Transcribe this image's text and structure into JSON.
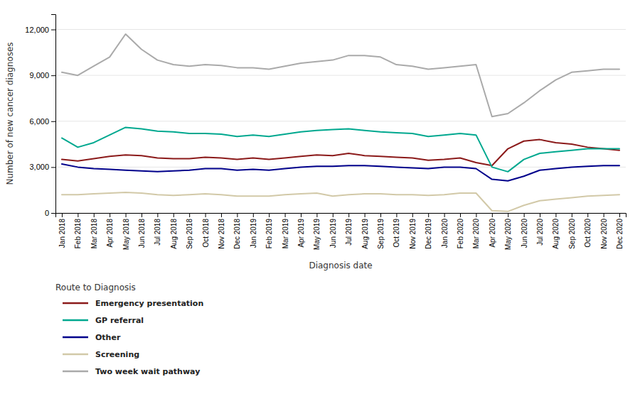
{
  "chart_data": {
    "type": "line",
    "xlabel": "Diagnosis date",
    "ylabel": "Number of new cancer diagnoses",
    "legend_title": "Route to Diagnosis",
    "categories": [
      "Jan 2018",
      "Feb 2018",
      "Mar 2018",
      "Apr 2018",
      "May 2018",
      "Jun 2018",
      "Jul 2018",
      "Aug 2018",
      "Sep 2018",
      "Oct 2018",
      "Nov 2018",
      "Dec 2018",
      "Jan 2019",
      "Feb 2019",
      "Mar 2019",
      "Apr 2019",
      "May 2019",
      "Jun 2019",
      "Jul 2019",
      "Aug 2019",
      "Sep 2019",
      "Oct 2019",
      "Nov 2019",
      "Dec 2019",
      "Jan 2020",
      "Feb 2020",
      "Mar 2020",
      "Apr 2020",
      "May 2020",
      "Jun 2020",
      "Jul 2020",
      "Aug 2020",
      "Sep 2020",
      "Oct 2020",
      "Nov 2020",
      "Dec 2020"
    ],
    "series": [
      {
        "name": "Emergency presentation",
        "color": "#8B1A1A",
        "values": [
          3500,
          3400,
          3550,
          3700,
          3800,
          3750,
          3600,
          3550,
          3550,
          3650,
          3600,
          3500,
          3600,
          3500,
          3600,
          3700,
          3800,
          3750,
          3900,
          3750,
          3700,
          3650,
          3600,
          3450,
          3500,
          3600,
          3300,
          3100,
          4200,
          4700,
          4800,
          4600,
          4500,
          4300,
          4200,
          4100
        ]
      },
      {
        "name": "GP referral",
        "color": "#00A88F",
        "values": [
          4900,
          4300,
          4600,
          5100,
          5600,
          5500,
          5350,
          5300,
          5200,
          5200,
          5150,
          5000,
          5100,
          5000,
          5150,
          5300,
          5400,
          5450,
          5500,
          5400,
          5300,
          5250,
          5200,
          5000,
          5100,
          5200,
          5100,
          3000,
          2700,
          3500,
          3900,
          4000,
          4100,
          4200,
          4200,
          4200
        ]
      },
      {
        "name": "Other",
        "color": "#00008B",
        "values": [
          3200,
          3000,
          2900,
          2850,
          2800,
          2750,
          2700,
          2750,
          2800,
          2900,
          2900,
          2800,
          2850,
          2800,
          2900,
          3000,
          3050,
          3050,
          3100,
          3100,
          3050,
          3000,
          2950,
          2900,
          3000,
          3000,
          2900,
          2200,
          2100,
          2400,
          2800,
          2900,
          3000,
          3050,
          3100,
          3100
        ]
      },
      {
        "name": "Screening",
        "color": "#D2C9A8",
        "values": [
          1200,
          1200,
          1250,
          1300,
          1350,
          1300,
          1200,
          1150,
          1200,
          1250,
          1200,
          1100,
          1100,
          1100,
          1200,
          1250,
          1300,
          1100,
          1200,
          1250,
          1250,
          1200,
          1200,
          1150,
          1200,
          1300,
          1300,
          150,
          100,
          500,
          800,
          900,
          1000,
          1100,
          1150,
          1200
        ]
      },
      {
        "name": "Two week wait pathway",
        "color": "#AAAAAA",
        "values": [
          9200,
          9000,
          9600,
          10200,
          11700,
          10700,
          10000,
          9700,
          9600,
          9700,
          9650,
          9500,
          9500,
          9400,
          9600,
          9800,
          9900,
          10000,
          10300,
          10300,
          10200,
          9700,
          9600,
          9400,
          9500,
          9600,
          9700,
          6300,
          6500,
          7200,
          8000,
          8700,
          9200,
          9300,
          9400,
          9400
        ]
      }
    ],
    "ylim": [
      0,
      13000
    ],
    "yticks": [
      0,
      {
        "value": 3000,
        "label": "3,000"
      },
      {
        "value": 6000,
        "label": "6,000"
      },
      {
        "value": 9000,
        "label": "9,000"
      },
      {
        "value": 12000,
        "label": "12,000"
      }
    ],
    "grid": true,
    "legend": "bottom"
  }
}
